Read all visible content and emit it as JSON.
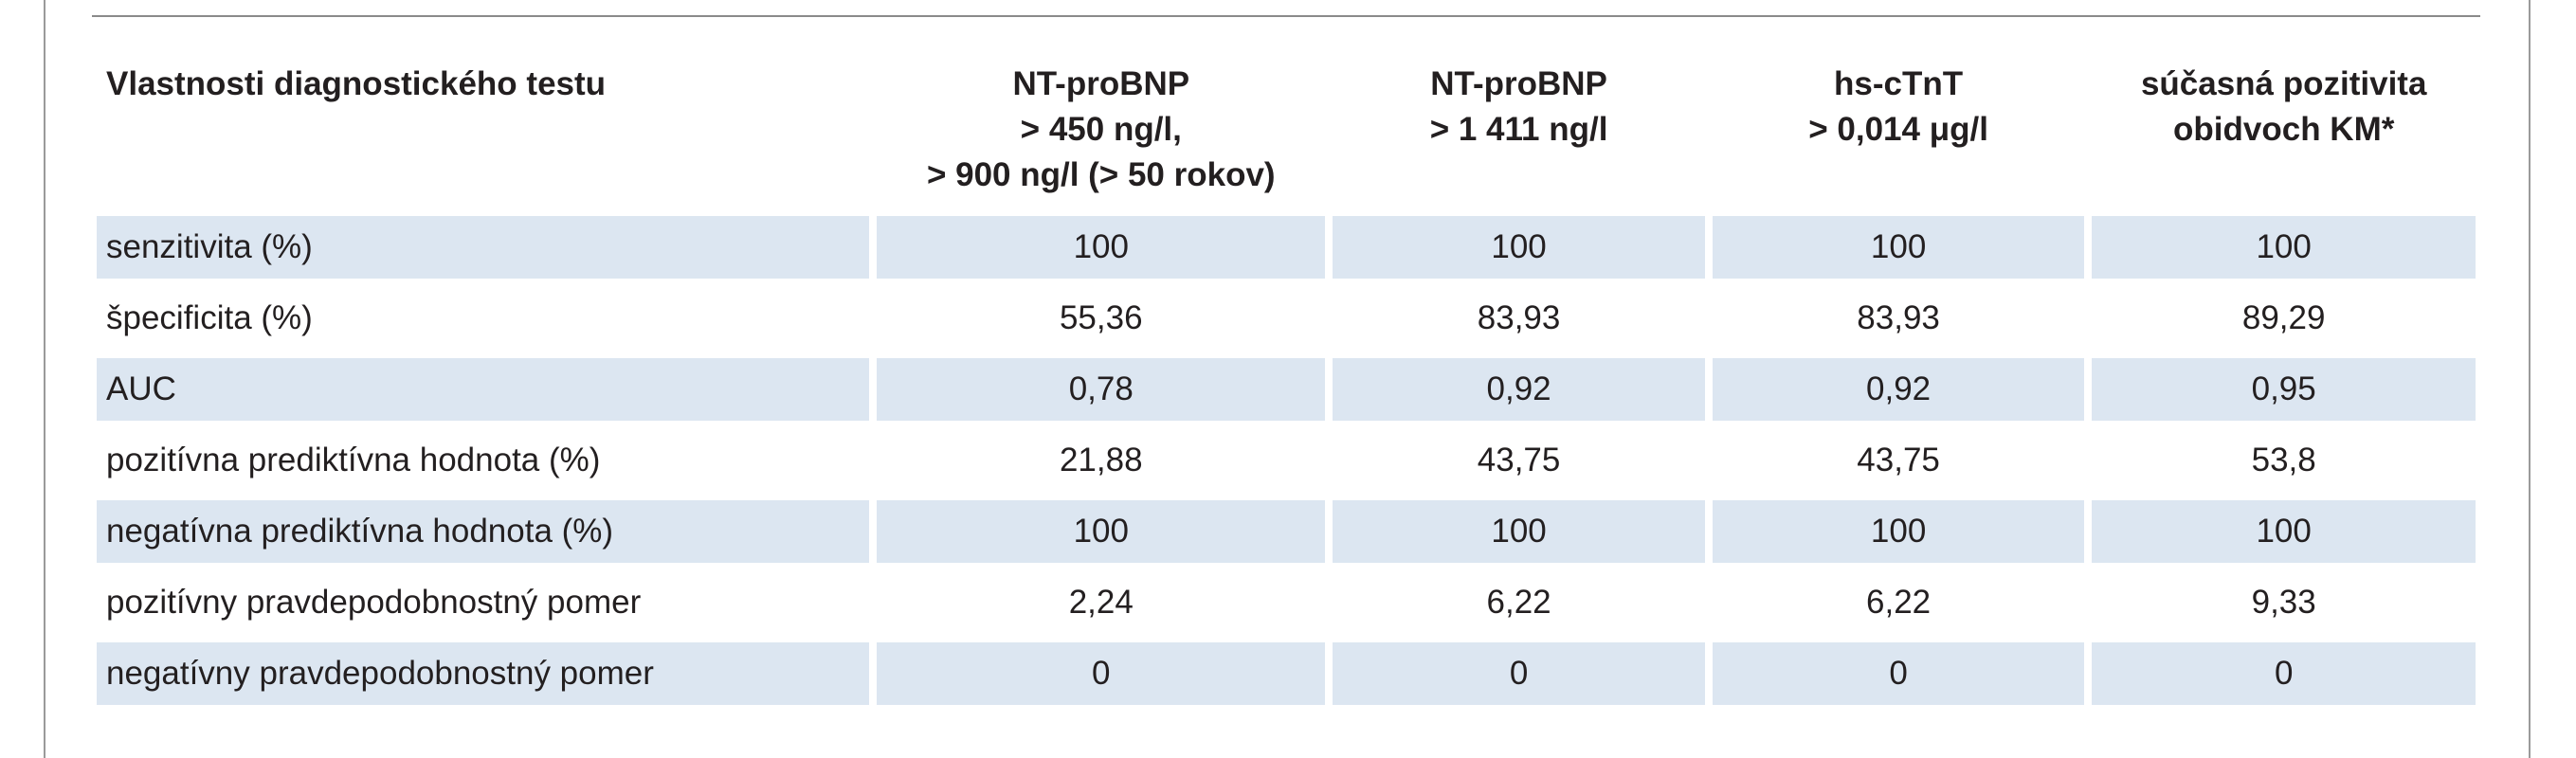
{
  "table": {
    "headers": [
      "Vlastnosti diagnostického testu",
      "NT-proBNP\n> 450 ng/l,\n> 900 ng/l (> 50 rokov)",
      "NT-proBNP\n> 1 411 ng/l",
      "hs-cTnT\n> 0,014 μg/l",
      "súčasná pozitivita\nobidvoch KM*"
    ],
    "rows": [
      {
        "label": "senzitivita (%)",
        "values": [
          "100",
          "100",
          "100",
          "100"
        ]
      },
      {
        "label": "špecificita (%)",
        "values": [
          "55,36",
          "83,93",
          "83,93",
          "89,29"
        ]
      },
      {
        "label": "AUC",
        "values": [
          "0,78",
          "0,92",
          "0,92",
          "0,95"
        ]
      },
      {
        "label": "pozitívna prediktívna hodnota (%)",
        "values": [
          "21,88",
          "43,75",
          "43,75",
          "53,8"
        ]
      },
      {
        "label": "negatívna prediktívna hodnota (%)",
        "values": [
          "100",
          "100",
          "100",
          "100"
        ]
      },
      {
        "label": "pozitívny pravdepodobnostný pomer",
        "values": [
          "2,24",
          "6,22",
          "6,22",
          "9,33"
        ]
      },
      {
        "label": "negatívny pravdepodobnostný pomer",
        "values": [
          "0",
          "0",
          "0",
          "0"
        ]
      }
    ]
  },
  "colors": {
    "row_shade": "#dce6f1",
    "text": "#231f20",
    "rule": "#8a8a8a"
  }
}
